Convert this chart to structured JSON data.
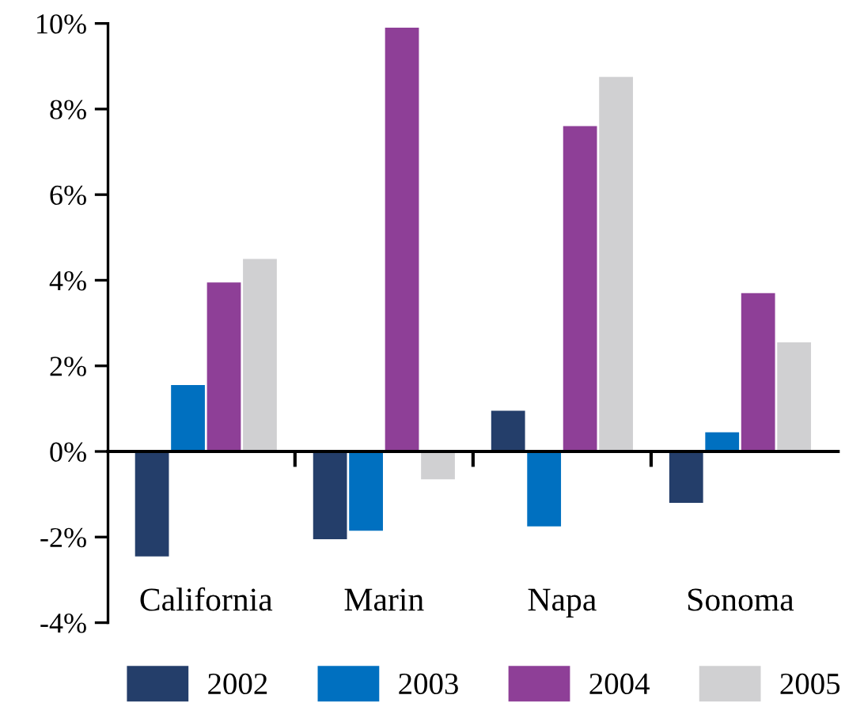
{
  "chart_data": {
    "type": "bar",
    "categories": [
      "California",
      "Marin",
      "Napa",
      "Sonoma"
    ],
    "series": [
      {
        "name": "2002",
        "color": "#243e6a",
        "values": [
          -2.45,
          -2.05,
          0.95,
          -1.2
        ]
      },
      {
        "name": "2003",
        "color": "#0070c0",
        "values": [
          1.55,
          -1.85,
          -1.75,
          0.45
        ]
      },
      {
        "name": "2004",
        "color": "#8e3f97",
        "values": [
          3.95,
          9.9,
          7.6,
          3.7
        ]
      },
      {
        "name": "2005",
        "color": "#d0d0d2",
        "values": [
          4.5,
          -0.65,
          8.75,
          2.55
        ]
      }
    ],
    "ylim": [
      -4,
      10
    ],
    "yticks": [
      {
        "value": -4,
        "label": "-4%"
      },
      {
        "value": -2,
        "label": "-2%"
      },
      {
        "value": 0,
        "label": "0%"
      },
      {
        "value": 2,
        "label": "2%"
      },
      {
        "value": 4,
        "label": "4%"
      },
      {
        "value": 6,
        "label": "6%"
      },
      {
        "value": 8,
        "label": "8%"
      },
      {
        "value": 10,
        "label": "10%"
      }
    ],
    "legend": "bottom"
  }
}
